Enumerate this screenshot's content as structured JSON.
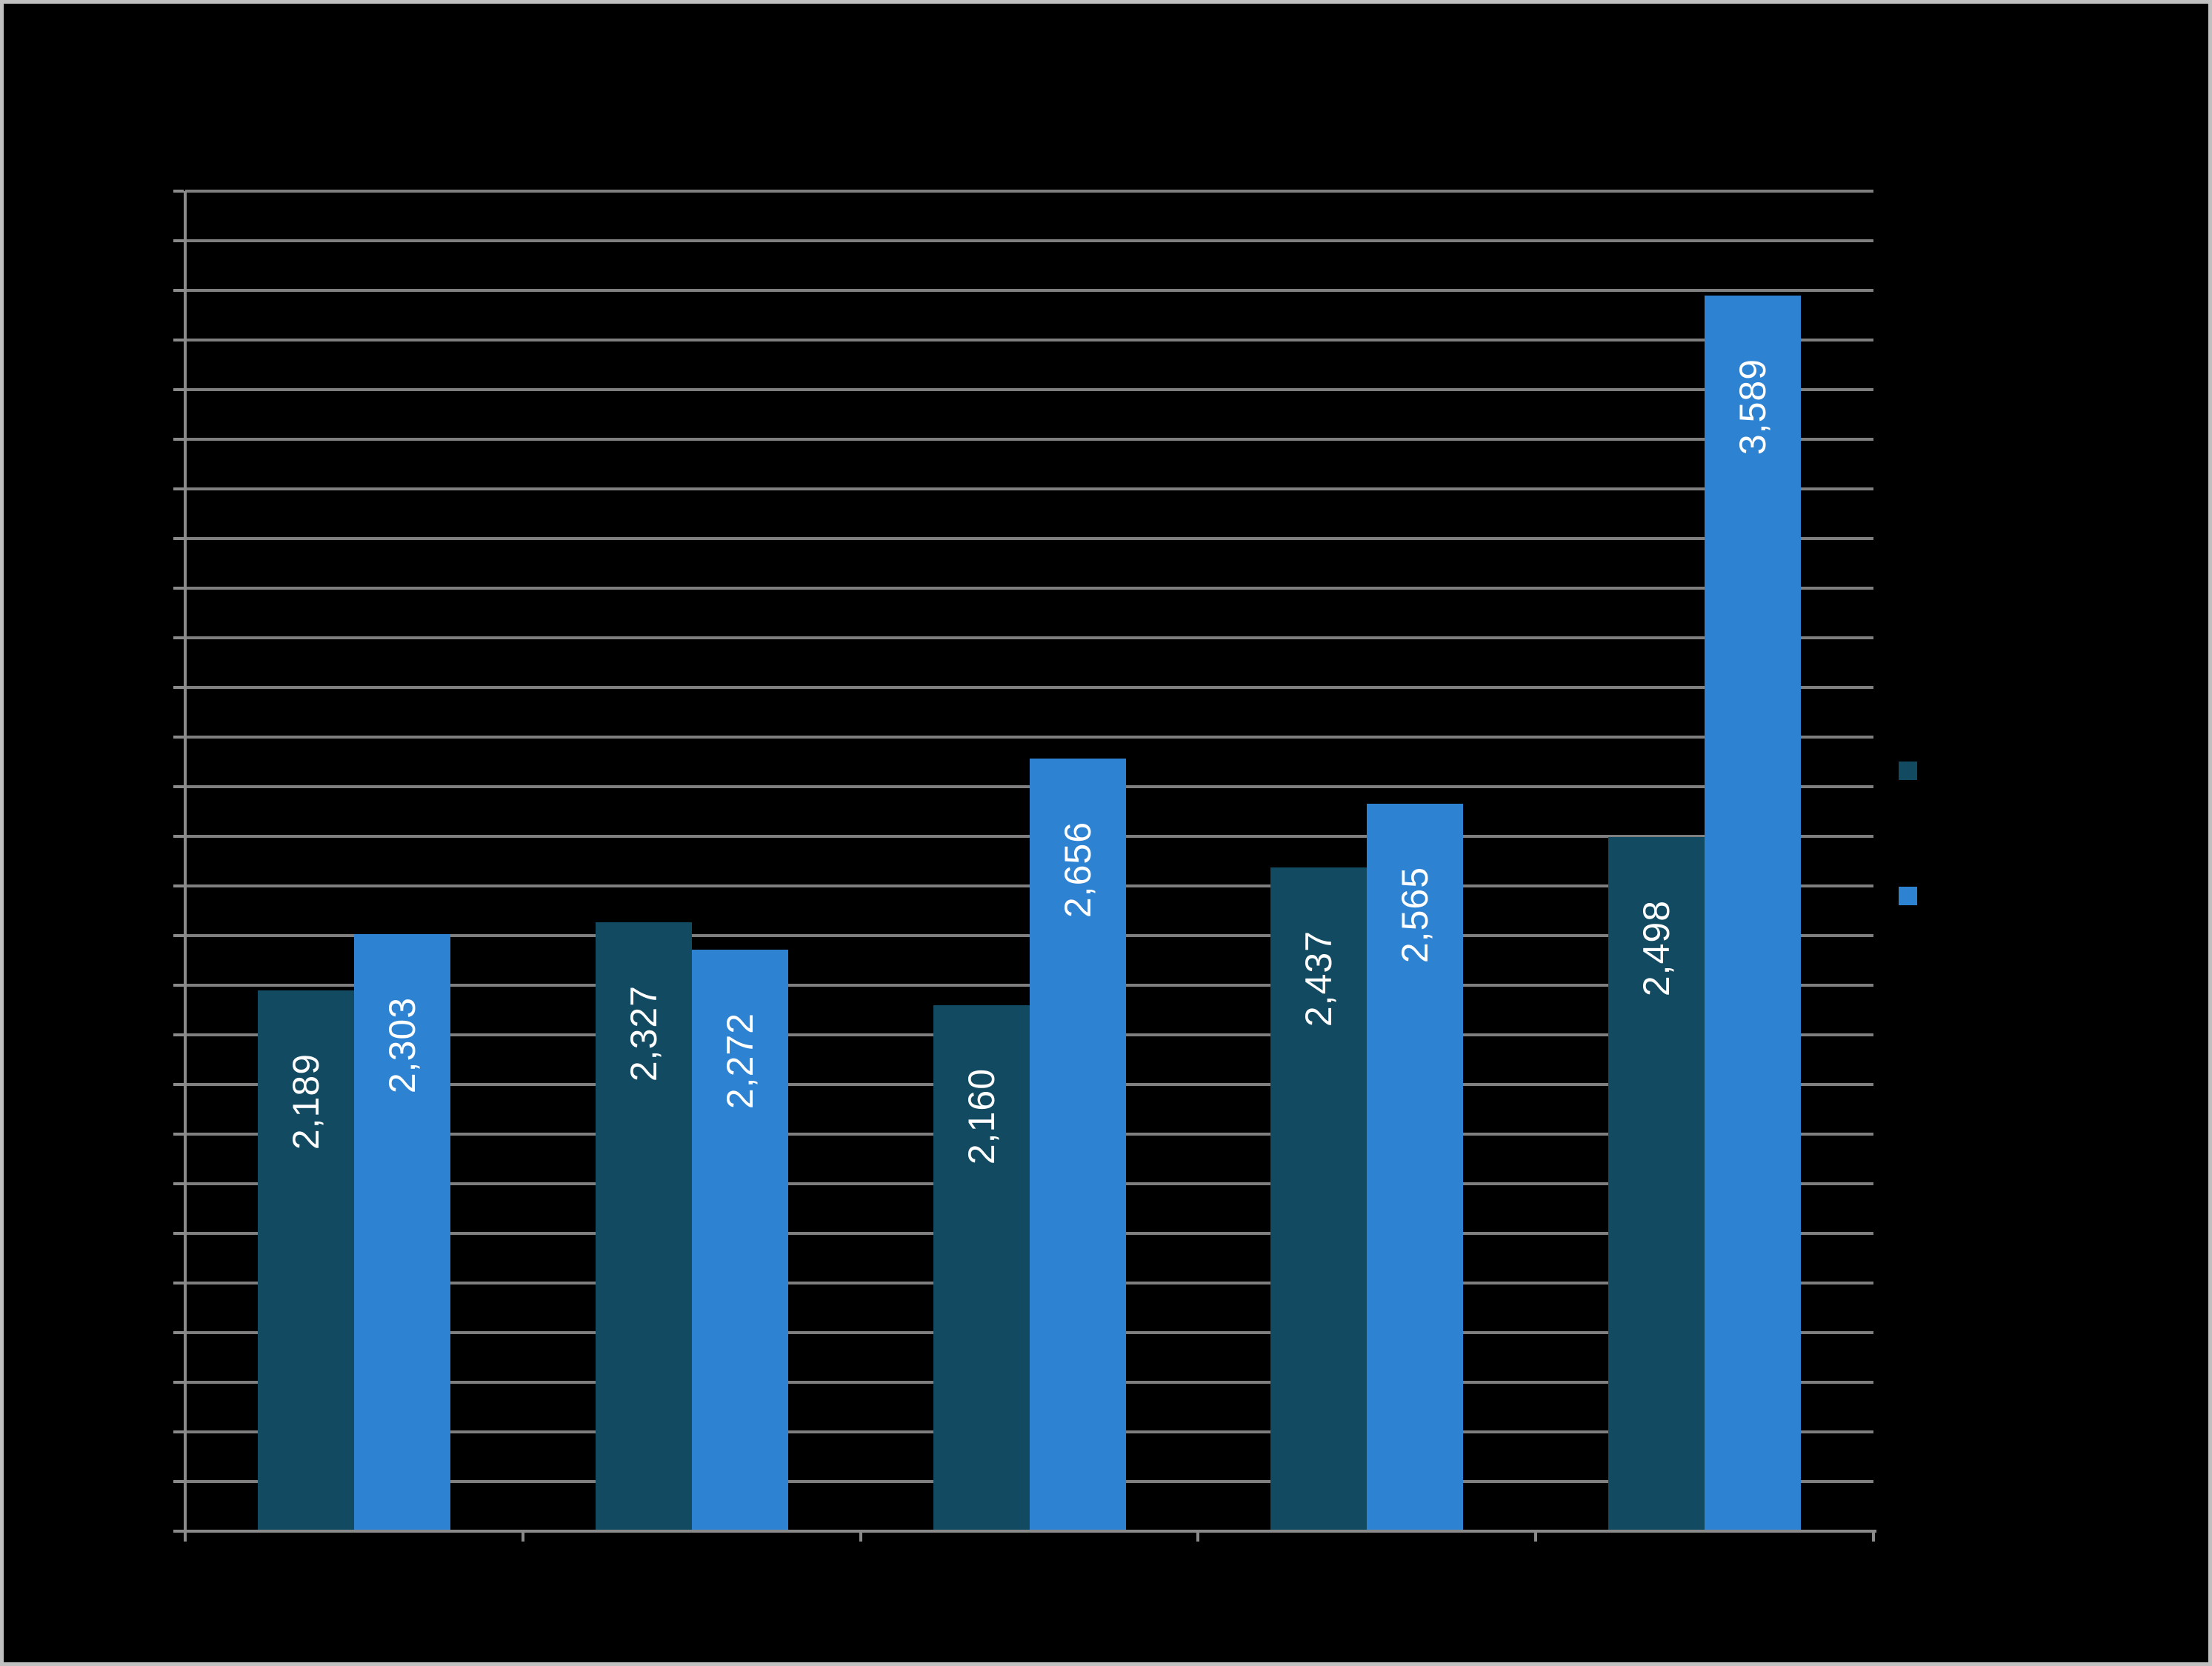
{
  "frame": {
    "background": "#000000",
    "border_color": "#c0c0c0"
  },
  "chart_data": {
    "type": "bar",
    "title": "",
    "categories": [
      "",
      "",
      "",
      "",
      ""
    ],
    "series": [
      {
        "name": "",
        "color": "#124A61",
        "values": [
          2189,
          2327,
          2160,
          2437,
          2498
        ],
        "data_labels": [
          "2,189",
          "2,327",
          "2,160",
          "2,437",
          "2,498"
        ]
      },
      {
        "name": "",
        "color": "#2E82D2",
        "values": [
          2303,
          2272,
          2656,
          2565,
          3589
        ],
        "data_labels": [
          "2,303",
          "2,272",
          "2,656",
          "2,565",
          "3,589"
        ]
      }
    ],
    "ylim": [
      1100,
      3800
    ],
    "ytick_step": 100,
    "grid": true,
    "gridline_color": "#7F7F7F",
    "axis_color": "#8A8A8A",
    "data_label_color": "#FFFFFF",
    "legend_position": "right"
  }
}
